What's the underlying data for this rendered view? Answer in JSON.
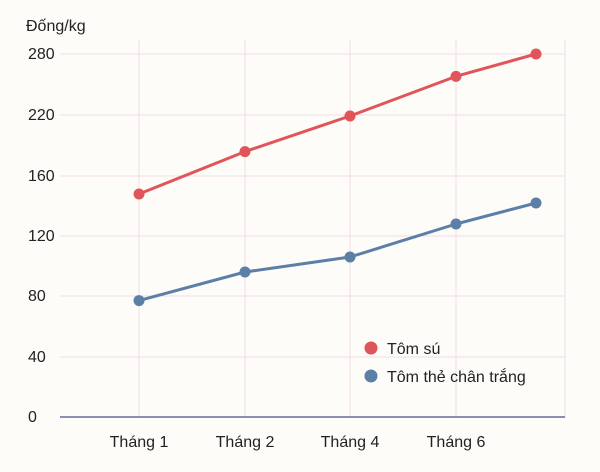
{
  "chart_data": {
    "type": "line",
    "title": "",
    "xlabel": "",
    "ylabel": "Đống/kg",
    "ylim": [
      0,
      280
    ],
    "yticks": [
      0,
      40,
      80,
      120,
      160,
      220,
      280
    ],
    "grid": true,
    "legend_position": "bottom-right",
    "categories": [
      "Tháng 1",
      "Tháng 2",
      "Tháng 4",
      "Tháng 6",
      ""
    ],
    "series": [
      {
        "name": "Tôm sú",
        "color": "#e05559",
        "values": [
          148,
          184,
          219,
          258,
          280
        ]
      },
      {
        "name": "Tôm thẻ chân trắng",
        "color": "#5b7fa6",
        "values": [
          77,
          96,
          106,
          128,
          142
        ]
      }
    ],
    "colors": {
      "axis": "#6a6a9a",
      "grid": "#f1dde3",
      "text": "#222222",
      "background": "#fdfcf8"
    }
  }
}
